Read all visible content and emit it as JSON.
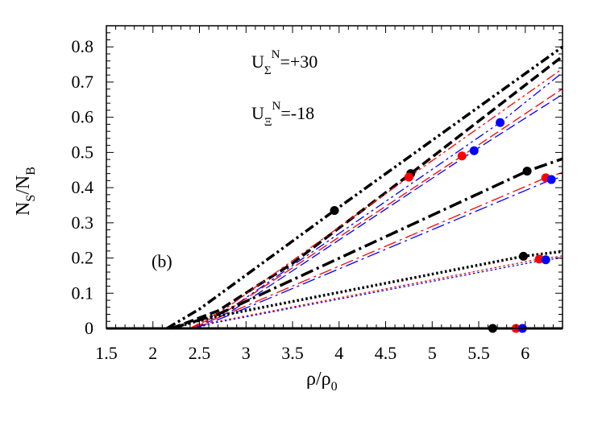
{
  "chart_data": {
    "type": "line",
    "panel_label": "(b)",
    "xlabel": {
      "main": "ρ/ρ",
      "sub": "0"
    },
    "ylabel": {
      "n1": "N",
      "s1": "S",
      "mid": "/N",
      "s2": "B"
    },
    "annotations": [
      {
        "base": "U",
        "sub": "Σ",
        "sup": "N",
        "rest": "=+30"
      },
      {
        "base": "U",
        "sub": "Ξ",
        "sup": "N",
        "rest": "=-18"
      }
    ],
    "xlim": [
      1.5,
      6.4
    ],
    "ylim": [
      0,
      0.86
    ],
    "xticks": [
      "1.5",
      "2",
      "2.5",
      "3",
      "3.5",
      "4",
      "4.5",
      "5",
      "5.5",
      "6"
    ],
    "yticks": [
      "0",
      "0.1",
      "0.2",
      "0.3",
      "0.4",
      "0.5",
      "0.6",
      "0.7",
      "0.8"
    ],
    "grid": false,
    "colors": {
      "black": "#000000",
      "red": "#ff0000",
      "blue": "#0000ff"
    },
    "series": [
      {
        "color": "black",
        "style": "dash-dot-dot",
        "points": [
          [
            2.15,
            0
          ],
          [
            2.5,
            0.055
          ],
          [
            3.95,
            0.335
          ],
          [
            6.4,
            0.8
          ]
        ]
      },
      {
        "color": "black",
        "style": "dashed",
        "points": [
          [
            2.2,
            0
          ],
          [
            2.7,
            0.05
          ],
          [
            3.5,
            0.185
          ],
          [
            4.77,
            0.44
          ],
          [
            6.4,
            0.773
          ]
        ]
      },
      {
        "color": "red",
        "style": "dash-dot-dot",
        "points": [
          [
            2.4,
            0
          ],
          [
            2.8,
            0.06
          ],
          [
            4.75,
            0.43
          ],
          [
            6.4,
            0.738
          ]
        ]
      },
      {
        "color": "blue",
        "style": "dash-dot-dot",
        "points": [
          [
            2.45,
            0
          ],
          [
            2.85,
            0.06
          ],
          [
            5.73,
            0.585
          ],
          [
            6.4,
            0.727
          ]
        ]
      },
      {
        "color": "red",
        "style": "dashed",
        "points": [
          [
            2.4,
            0
          ],
          [
            2.8,
            0.05
          ],
          [
            5.32,
            0.49
          ],
          [
            6.4,
            0.681
          ]
        ]
      },
      {
        "color": "blue",
        "style": "dashed",
        "points": [
          [
            2.45,
            0
          ],
          [
            2.85,
            0.05
          ],
          [
            5.45,
            0.505
          ],
          [
            6.4,
            0.665
          ]
        ]
      },
      {
        "color": "black",
        "style": "dash-dot",
        "points": [
          [
            2.2,
            0
          ],
          [
            2.7,
            0.04
          ],
          [
            6.02,
            0.447
          ],
          [
            6.4,
            0.482
          ]
        ]
      },
      {
        "color": "red",
        "style": "dash-dot",
        "points": [
          [
            2.4,
            0
          ],
          [
            2.7,
            0.03
          ],
          [
            6.22,
            0.428
          ],
          [
            6.4,
            0.443
          ]
        ]
      },
      {
        "color": "blue",
        "style": "dash-dot",
        "points": [
          [
            2.45,
            0
          ],
          [
            2.75,
            0.03
          ],
          [
            6.28,
            0.423
          ],
          [
            6.4,
            0.43
          ]
        ]
      },
      {
        "color": "black",
        "style": "dotted",
        "points": [
          [
            2.2,
            0
          ],
          [
            2.6,
            0.03
          ],
          [
            5.98,
            0.205
          ],
          [
            6.4,
            0.219
          ]
        ]
      },
      {
        "color": "red",
        "style": "dotted",
        "points": [
          [
            2.4,
            0
          ],
          [
            2.6,
            0.015
          ],
          [
            6.15,
            0.197
          ],
          [
            6.4,
            0.206
          ]
        ]
      },
      {
        "color": "blue",
        "style": "dotted",
        "points": [
          [
            2.45,
            0
          ],
          [
            2.65,
            0.015
          ],
          [
            6.22,
            0.195
          ],
          [
            6.4,
            0.2
          ]
        ]
      },
      {
        "color": "black",
        "style": "solid",
        "points": [
          [
            1.5,
            0
          ],
          [
            6.4,
            0
          ]
        ]
      }
    ],
    "markers": [
      {
        "color": "black",
        "x": 3.95,
        "y": 0.335
      },
      {
        "color": "black",
        "x": 4.77,
        "y": 0.44
      },
      {
        "color": "red",
        "x": 4.75,
        "y": 0.43
      },
      {
        "color": "red",
        "x": 5.32,
        "y": 0.49
      },
      {
        "color": "blue",
        "x": 5.45,
        "y": 0.505
      },
      {
        "color": "blue",
        "x": 5.73,
        "y": 0.585
      },
      {
        "color": "black",
        "x": 6.02,
        "y": 0.447
      },
      {
        "color": "red",
        "x": 6.22,
        "y": 0.428
      },
      {
        "color": "blue",
        "x": 6.28,
        "y": 0.423
      },
      {
        "color": "black",
        "x": 5.98,
        "y": 0.205
      },
      {
        "color": "red",
        "x": 6.15,
        "y": 0.197
      },
      {
        "color": "blue",
        "x": 6.22,
        "y": 0.195
      },
      {
        "color": "black",
        "x": 5.65,
        "y": 0
      },
      {
        "color": "red",
        "x": 5.9,
        "y": 0
      },
      {
        "color": "blue",
        "x": 5.97,
        "y": 0
      }
    ]
  }
}
